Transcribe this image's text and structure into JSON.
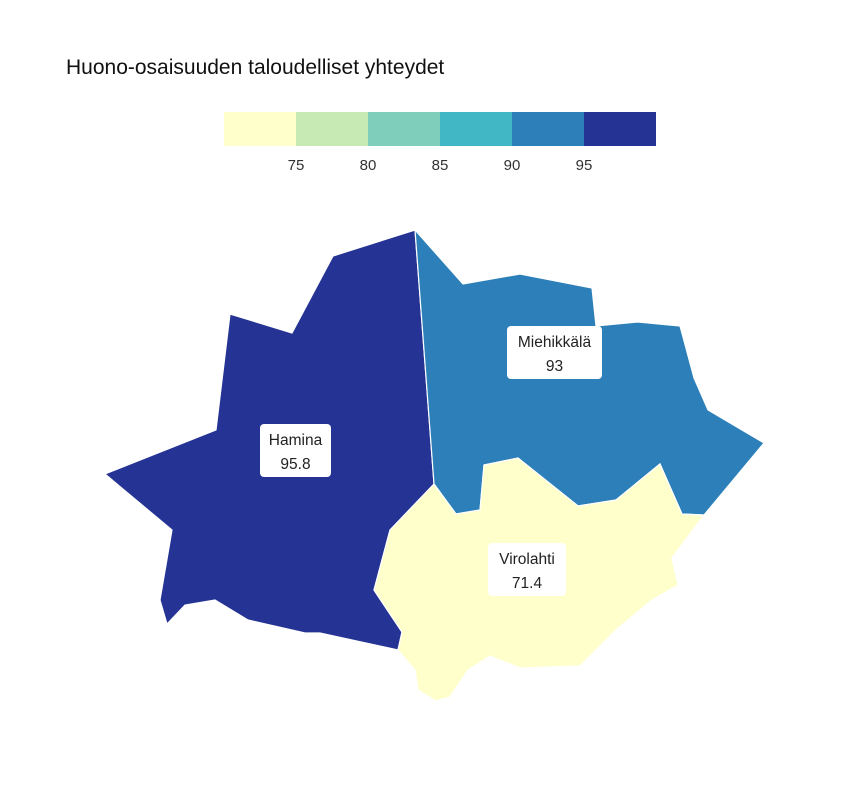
{
  "title": "Huono-osaisuuden taloudelliset yhteydet",
  "legend": {
    "colors": [
      "#ffffcc",
      "#c7e9b4",
      "#7fcdbb",
      "#41b6c4",
      "#2c7fb8",
      "#253494"
    ],
    "tick_labels": [
      "75",
      "80",
      "85",
      "90",
      "95"
    ]
  },
  "regions": [
    {
      "name": "Hamina",
      "value": "95.8",
      "color": "#253494"
    },
    {
      "name": "Miehikkälä",
      "value": "93",
      "color": "#2c7fb8"
    },
    {
      "name": "Virolahti",
      "value": "71.4",
      "color": "#ffffcc"
    }
  ]
}
